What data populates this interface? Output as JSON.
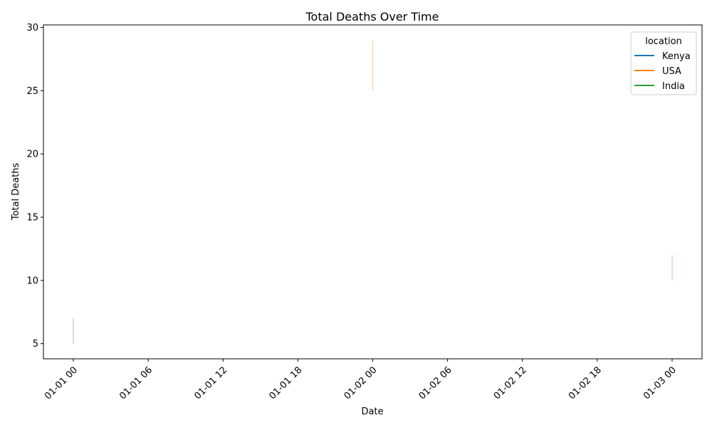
{
  "chart_data": {
    "type": "line",
    "title": "Total Deaths Over Time",
    "xlabel": "Date",
    "ylabel": "Total Deaths",
    "x_ticks": [
      "01-01 00",
      "01-01 06",
      "01-01 12",
      "01-01 18",
      "01-02 00",
      "01-02 06",
      "01-02 12",
      "01-02 18",
      "01-03 00"
    ],
    "y_ticks": [
      5,
      10,
      15,
      20,
      25,
      30
    ],
    "ylim": [
      3.8,
      30.2
    ],
    "xlim_hours": [
      -2.4,
      50.4
    ],
    "legend": {
      "title": "location",
      "position": "top-right"
    },
    "series": [
      {
        "name": "Kenya",
        "color": "#1f77b4",
        "segments": [
          {
            "x_hours": 0,
            "y_range": [
              5,
              7
            ]
          }
        ]
      },
      {
        "name": "USA",
        "color": "#ff7f0e",
        "segments": [
          {
            "x_hours": 24,
            "y_range": [
              25,
              29
            ]
          }
        ]
      },
      {
        "name": "India",
        "color": "#2ca02c",
        "segments": [
          {
            "x_hours": 48,
            "y_range": [
              10,
              12
            ]
          }
        ]
      }
    ],
    "grid": false
  }
}
